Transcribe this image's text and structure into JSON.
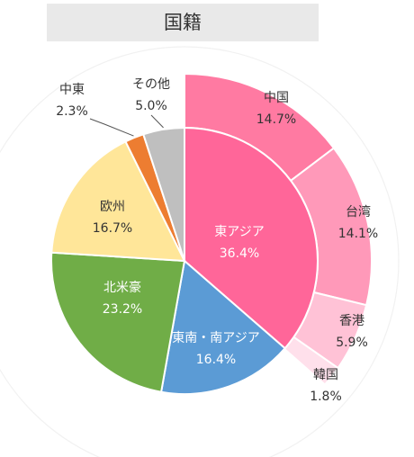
{
  "chart_data": {
    "type": "pie",
    "title": "国籍",
    "inner": [
      {
        "name": "東アジア",
        "value": 36.4,
        "label": "36.4%",
        "color": "#ff6699"
      },
      {
        "name": "東南・南アジア",
        "value": 16.4,
        "label": "16.4%",
        "color": "#5b9bd5"
      },
      {
        "name": "北米豪",
        "value": 23.2,
        "label": "23.2%",
        "color": "#70ad47"
      },
      {
        "name": "欧州",
        "value": 16.7,
        "label": "16.7%",
        "color": "#ffe699"
      },
      {
        "name": "中東",
        "value": 2.3,
        "label": "2.3%",
        "color": "#ed7d31"
      },
      {
        "name": "その他",
        "value": 5.0,
        "label": "5.0%",
        "color": "#bfbfbf"
      }
    ],
    "outer": [
      {
        "name": "中国",
        "value": 14.7,
        "label": "14.7%",
        "color": "#ff7aa2"
      },
      {
        "name": "台湾",
        "value": 14.1,
        "label": "14.1%",
        "color": "#ff99b9"
      },
      {
        "name": "香港",
        "value": 5.9,
        "label": "5.9%",
        "color": "#ffc2d6"
      },
      {
        "name": "韓国",
        "value": 1.8,
        "label": "1.8%",
        "color": "#ffe0eb"
      }
    ]
  }
}
